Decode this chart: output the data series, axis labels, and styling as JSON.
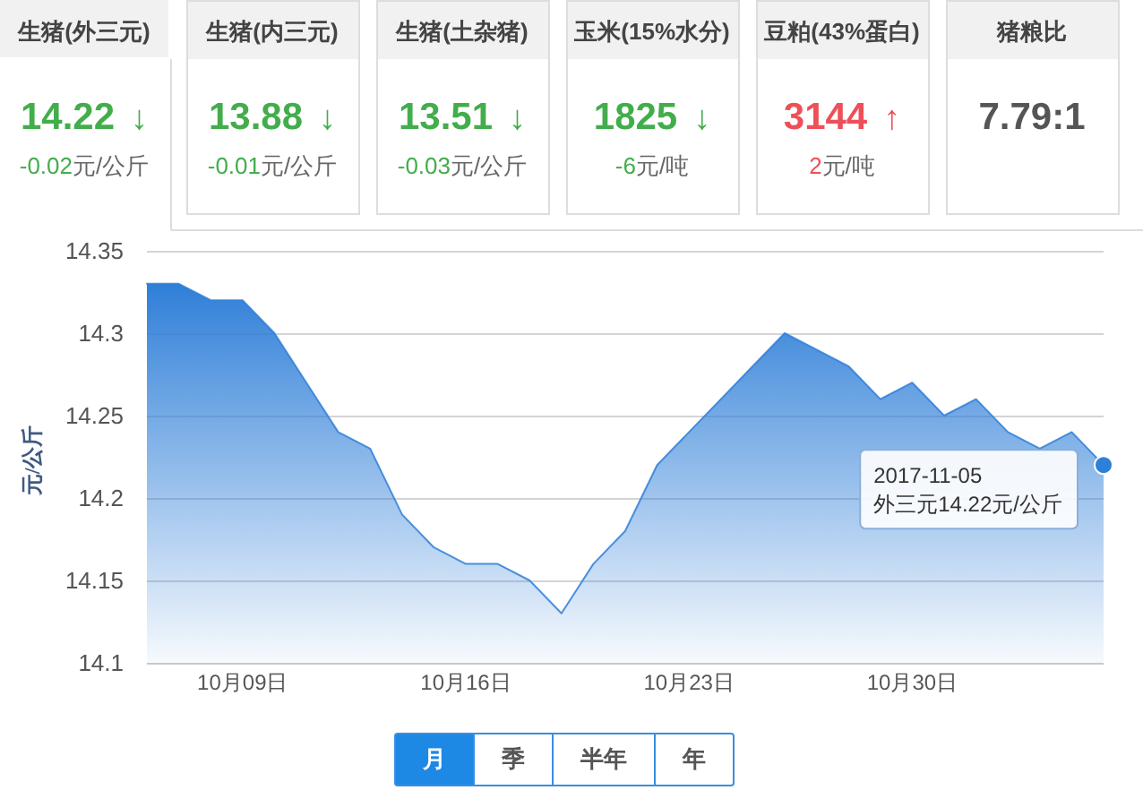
{
  "chart_data": [
    {
      "type": "other",
      "title": "生猪(外三元)",
      "annotations": [
        "14.22",
        "↓",
        "-0.02",
        "元/公斤"
      ],
      "color": "#43ad4c"
    },
    {
      "type": "other",
      "title": "生猪(内三元)",
      "annotations": [
        "13.88",
        "↓",
        "-0.01",
        "元/公斤"
      ],
      "color": "#43ad4c"
    },
    {
      "type": "other",
      "title": "生猪(土杂猪)",
      "annotations": [
        "13.51",
        "↓",
        "-0.03",
        "元/公斤"
      ],
      "color": "#43ad4c"
    },
    {
      "type": "other",
      "title": "玉米(15%水分)",
      "annotations": [
        "1825",
        "↓",
        "-6",
        "元/吨"
      ],
      "color": "#43ad4c"
    },
    {
      "type": "other",
      "title": "豆粕(43%蛋白)",
      "annotations": [
        "3144",
        "↑",
        "2",
        "元/吨"
      ],
      "color": "#ef4f58"
    },
    {
      "type": "other",
      "title": "猪粮比",
      "annotations": [
        "7.79:1"
      ],
      "color": "#555555"
    },
    {
      "type": "area",
      "ylabel": "元/公斤",
      "color": "#2f7fd8",
      "x": [
        "2017-10-06",
        "2017-10-07",
        "2017-10-08",
        "2017-10-09",
        "2017-10-10",
        "2017-10-11",
        "2017-10-12",
        "2017-10-13",
        "2017-10-14",
        "2017-10-15",
        "2017-10-16",
        "2017-10-17",
        "2017-10-18",
        "2017-10-19",
        "2017-10-20",
        "2017-10-21",
        "2017-10-22",
        "2017-10-23",
        "2017-10-24",
        "2017-10-25",
        "2017-10-26",
        "2017-10-27",
        "2017-10-28",
        "2017-10-29",
        "2017-10-30",
        "2017-10-31",
        "2017-11-01",
        "2017-11-02",
        "2017-11-03",
        "2017-11-04",
        "2017-11-05"
      ],
      "values": [
        14.33,
        14.33,
        14.32,
        14.32,
        14.3,
        14.27,
        14.24,
        14.23,
        14.19,
        14.17,
        14.16,
        14.16,
        14.15,
        14.13,
        14.16,
        14.18,
        14.22,
        14.24,
        14.26,
        14.28,
        14.3,
        14.29,
        14.28,
        14.26,
        14.27,
        14.25,
        14.26,
        14.24,
        14.23,
        14.24,
        14.22
      ],
      "xlim": [
        "2017-10-06",
        "2017-11-05"
      ],
      "xticks": [
        {
          "value": "2017-10-09",
          "label": "10月09日"
        },
        {
          "value": "2017-10-16",
          "label": "10月16日"
        },
        {
          "value": "2017-10-23",
          "label": "10月23日"
        },
        {
          "value": "2017-10-30",
          "label": "10月30日"
        }
      ],
      "ylim": [
        14.1,
        14.35
      ],
      "yticks": [
        14.1,
        14.15,
        14.2,
        14.25,
        14.3,
        14.35
      ],
      "grid": "y",
      "annotations": [
        {
          "text": "2017-11-05\n外三元14.22元/公斤",
          "x": "2017-11-05",
          "y": 14.22
        }
      ]
    },
    {
      "type": "other",
      "categories": [
        "月",
        "季",
        "半年",
        "年"
      ],
      "colors": [
        "#1e88e5",
        "#ffffff",
        "#ffffff",
        "#ffffff"
      ]
    }
  ]
}
